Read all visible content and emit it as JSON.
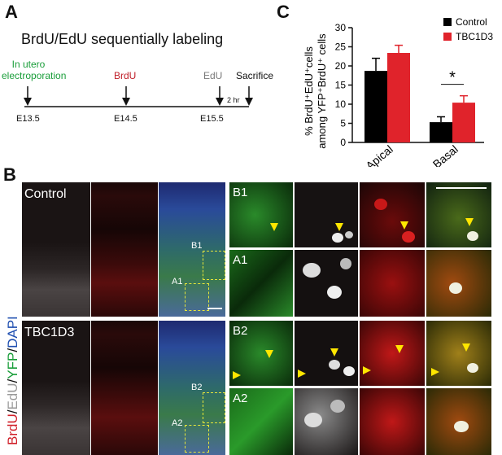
{
  "panel_a": {
    "letter": "A",
    "title": "BrdU/EdU sequentially labeling",
    "events": [
      {
        "label": "In utero\nelectroporation",
        "day": "E13.5",
        "color": "#1a9e3a"
      },
      {
        "label": "BrdU",
        "day": "E14.5",
        "color": "#c0202a"
      },
      {
        "label": "EdU",
        "day": "E15.5",
        "color": "#7a7a7a"
      },
      {
        "label": "Sacrifice",
        "day": "",
        "color": "#111111"
      }
    ],
    "interval_label": "2 hr"
  },
  "panel_b": {
    "letter": "B",
    "vertical_label_parts": [
      {
        "text": "BrdU",
        "color": "#d0202a"
      },
      {
        "text": "/",
        "color": "#111111"
      },
      {
        "text": "EdU",
        "color": "#9a9a9a"
      },
      {
        "text": "/",
        "color": "#111111"
      },
      {
        "text": "YFP",
        "color": "#1a9e3a"
      },
      {
        "text": "/",
        "color": "#111111"
      },
      {
        "text": "DAPI",
        "color": "#1f4fb0"
      }
    ],
    "row_labels": [
      "Control",
      "TBC1D3"
    ],
    "inset_labels": [
      "B1",
      "A1",
      "B2",
      "A2"
    ]
  },
  "chart_data": {
    "type": "bar",
    "panel_letter": "C",
    "categories": [
      "Apical",
      "Basal"
    ],
    "series": [
      {
        "name": "Control",
        "color": "#000000",
        "values": [
          18.7,
          5.3
        ],
        "errors": [
          3.3,
          1.4
        ]
      },
      {
        "name": "TBC1D3",
        "color": "#e0232b",
        "values": [
          23.4,
          10.4
        ],
        "errors": [
          2.0,
          1.8
        ]
      }
    ],
    "ylim": [
      0,
      30
    ],
    "yticks": [
      "0",
      "5",
      "10",
      "15",
      "20",
      "25",
      "30"
    ],
    "ylabel_line1": "% BrdU⁺EdU⁺cells",
    "ylabel_line2": "among YFP⁺BrdU⁺ cells",
    "significance": {
      "category": "Basal",
      "label": "*"
    },
    "legend_position": "top-right"
  }
}
